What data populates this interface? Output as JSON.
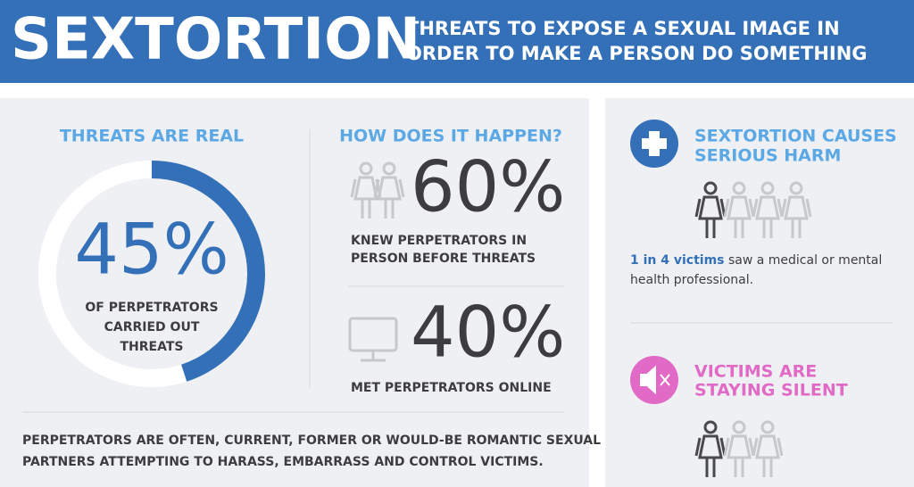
{
  "header": {
    "title": "SEXTORTION",
    "subtitle": [
      "THREATS TO EXPOSE A SEXUAL IMAGE IN",
      "ORDER TO MAKE A PERSON DO SOMETHING"
    ]
  },
  "threats": {
    "heading": "THREATS ARE REAL",
    "stat": {
      "value": 45,
      "label": "45%"
    },
    "caption": [
      "OF PERPETRATORS",
      "CARRIED OUT",
      "THREATS"
    ]
  },
  "how": {
    "heading": "HOW DOES IT HAPPEN?",
    "items": [
      {
        "label": "60%",
        "caption": [
          "KNEW PERPETRATORS IN",
          "PERSON BEFORE THREATS"
        ]
      },
      {
        "label": "40%",
        "caption": [
          "MET PERPETRATORS ONLINE"
        ]
      }
    ]
  },
  "footer": [
    "PERPETRATORS ARE OFTEN, CURRENT, FORMER OR WOULD-BE ROMANTIC SEXUAL",
    "PARTNERS ATTEMPTING TO HARASS, EMBARRASS AND CONTROL VICTIMS."
  ],
  "harm": {
    "heading": [
      "SEXTORTION CAUSES",
      "SERIOUS HARM"
    ],
    "highlight": "1 in 4 victims",
    "text": [
      " saw a medical or mental",
      "health professional."
    ]
  },
  "silent": {
    "heading": [
      "VICTIMS ARE",
      "STAYING SILENT"
    ]
  }
}
